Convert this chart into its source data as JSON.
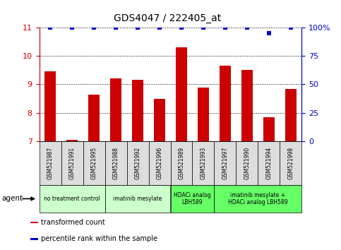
{
  "title": "GDS4047 / 222405_at",
  "samples": [
    "GSM521987",
    "GSM521991",
    "GSM521995",
    "GSM521988",
    "GSM521992",
    "GSM521996",
    "GSM521989",
    "GSM521993",
    "GSM521997",
    "GSM521990",
    "GSM521994",
    "GSM521998"
  ],
  "bar_values": [
    9.45,
    7.05,
    8.65,
    9.2,
    9.15,
    8.5,
    10.3,
    8.9,
    9.65,
    9.5,
    7.85,
    8.85
  ],
  "percentile_values": [
    100,
    100,
    100,
    100,
    100,
    100,
    100,
    100,
    100,
    100,
    95,
    100
  ],
  "bar_color": "#cc0000",
  "percentile_color": "#0000cc",
  "ylim_left": [
    7,
    11
  ],
  "ylim_right": [
    0,
    100
  ],
  "yticks_left": [
    7,
    8,
    9,
    10,
    11
  ],
  "yticks_right": [
    0,
    25,
    50,
    75,
    100
  ],
  "right_tick_labels": [
    "0",
    "25",
    "50",
    "75",
    "100%"
  ],
  "groups": [
    {
      "label": "no treatment control",
      "start": 0,
      "end": 3,
      "color": "#ccffcc"
    },
    {
      "label": "imatinib mesylate",
      "start": 3,
      "end": 6,
      "color": "#ccffcc"
    },
    {
      "label": "HDACi analog\nLBH589",
      "start": 6,
      "end": 8,
      "color": "#66ff66"
    },
    {
      "label": "imatinib mesylate +\nHDACi analog LBH589",
      "start": 8,
      "end": 12,
      "color": "#66ff66"
    }
  ],
  "agent_label": "agent",
  "legend_items": [
    {
      "color": "#cc0000",
      "label": "transformed count"
    },
    {
      "color": "#0000cc",
      "label": "percentile rank within the sample"
    }
  ],
  "background_color": "#ffffff",
  "tick_label_color_left": "#cc0000",
  "tick_label_color_right": "#0000cc",
  "sample_box_color": "#dddddd",
  "title_fontsize": 10,
  "bar_width": 0.5
}
